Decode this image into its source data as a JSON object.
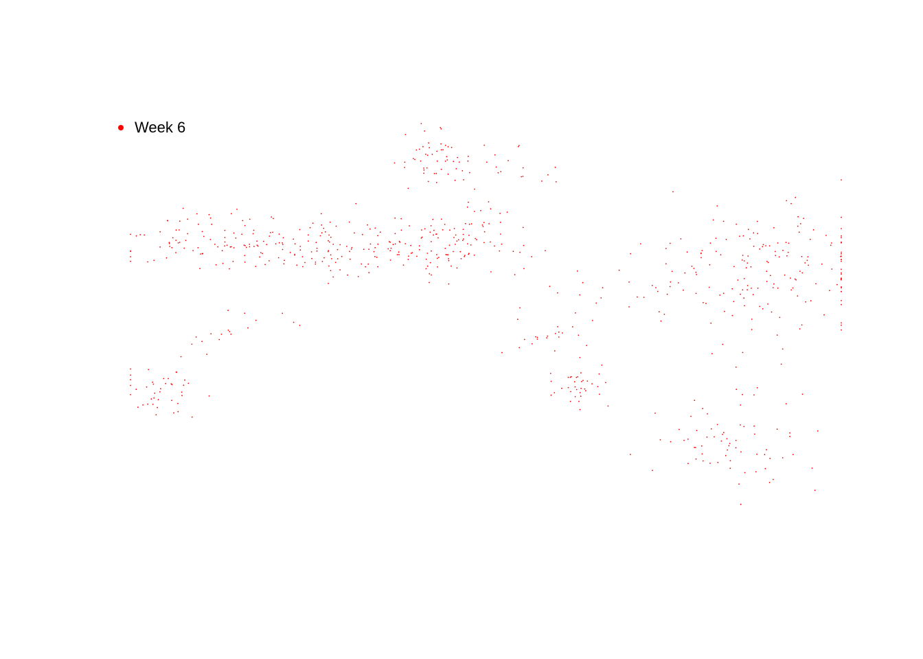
{
  "chart_data": {
    "type": "scatter",
    "title": "",
    "xlabel": "",
    "ylabel": "",
    "axes_visible": false,
    "grid": false,
    "legend_position": "top-left",
    "xlim": [
      0,
      100
    ],
    "ylim": [
      0,
      100
    ],
    "series": [
      {
        "name": "Week 6",
        "color": "#ff0000",
        "clusters": [
          {
            "n": 40,
            "cx": 4.5,
            "cy": 30.5,
            "sx": 3.2,
            "sy": 3.0,
            "rot": 34,
            "seed": 11
          },
          {
            "n": 18,
            "cx": 14.0,
            "cy": 45.5,
            "sx": 5.0,
            "sy": 1.8,
            "rot": 30,
            "seed": 12
          },
          {
            "n": 115,
            "cx": 14.0,
            "cy": 69.0,
            "sx": 8.0,
            "sy": 4.0,
            "rot": 0,
            "seed": 13
          },
          {
            "n": 85,
            "cx": 30.0,
            "cy": 66.5,
            "sx": 8.0,
            "sy": 3.2,
            "rot": 0,
            "seed": 14
          },
          {
            "n": 85,
            "cx": 43.5,
            "cy": 68.5,
            "sx": 4.5,
            "sy": 4.5,
            "rot": 0,
            "seed": 15
          },
          {
            "n": 38,
            "cx": 41.5,
            "cy": 90.0,
            "sx": 2.2,
            "sy": 4.0,
            "rot": 0,
            "seed": 16
          },
          {
            "n": 30,
            "cx": 50.5,
            "cy": 89.0,
            "sx": 4.5,
            "sy": 2.5,
            "rot": -30,
            "seed": 17
          },
          {
            "n": 24,
            "cx": 52.0,
            "cy": 70.0,
            "sx": 3.5,
            "sy": 3.5,
            "rot": 0,
            "seed": 18
          },
          {
            "n": 20,
            "cx": 58.0,
            "cy": 44.5,
            "sx": 4.0,
            "sy": 5.0,
            "rot": 20,
            "seed": 19
          },
          {
            "n": 34,
            "cx": 63.5,
            "cy": 31.0,
            "sx": 2.2,
            "sy": 3.0,
            "rot": 0,
            "seed": 20
          },
          {
            "n": 22,
            "cx": 68.0,
            "cy": 52.0,
            "sx": 8.0,
            "sy": 10.0,
            "rot": 0,
            "seed": 21
          },
          {
            "n": 55,
            "cx": 84.5,
            "cy": 15.5,
            "sx": 5.5,
            "sy": 4.0,
            "rot": -15,
            "seed": 22
          },
          {
            "n": 20,
            "cx": 87.0,
            "cy": 31.0,
            "sx": 4.0,
            "sy": 6.0,
            "rot": 0,
            "seed": 23
          },
          {
            "n": 170,
            "cx": 90.5,
            "cy": 62.0,
            "sx": 8.5,
            "sy": 8.0,
            "rot": 0,
            "seed": 24
          }
        ]
      }
    ]
  },
  "legend": {
    "label": "Week 6",
    "color": "#ff0000"
  }
}
